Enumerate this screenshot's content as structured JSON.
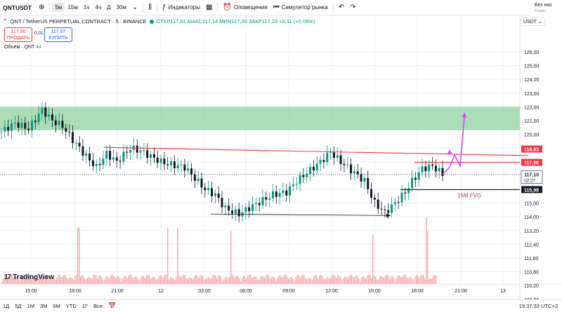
{
  "toolbar": {
    "symbol": "QNTUSDT",
    "intervals": [
      "5м",
      "15м",
      "1ч",
      "4ч",
      "Д",
      "30м"
    ],
    "indicators_label": "Индикаторы",
    "alerts_label": "Оповещения",
    "replay_label": "Симулятор рынка",
    "account_label": "Без наз",
    "account_sub": "Сохра"
  },
  "legend": {
    "title": "QNT / TetherUS PERPETUAL CONTRACT · 5 · BINANCE",
    "ohlc": "ОТКР117,01 МАКС117,14 МИН117,00 ЗАКР117,10 +0,11 (+0,09%)",
    "sell_price": "117,06",
    "sell_label": "ПРОДАТЬ",
    "spread": "0,01",
    "buy_price": "117,07",
    "buy_label": "КУПИТЬ",
    "volume_label": "Объём · QNT",
    "volume_value": "44"
  },
  "currency": "USDT",
  "annotation": "15M FVG",
  "logo_text": "TradingView",
  "bottom": {
    "ranges": [
      "1Д",
      "5Д",
      "1М",
      "3М",
      "6М",
      "YTD",
      "1Г",
      "Все"
    ],
    "clock": "19:37:33 UTC+3"
  },
  "colors": {
    "up": "#089981",
    "down": "#131722",
    "zone": "#8fd19e",
    "red_line": "#f23645",
    "arrow": "#e040fb",
    "volume": "#f7a9a9"
  },
  "chart_data": {
    "type": "candlestick",
    "y_axis_labels": [
      "126,00",
      "125,00",
      "124,00",
      "123,00",
      "122,00",
      "121,00",
      "120,00",
      "119,00",
      "118,00",
      "117,00",
      "116,00",
      "115,00",
      "114,00",
      "113,20",
      "112,40",
      "111,60",
      "110,80",
      "110,20",
      "109,55"
    ],
    "x_axis_labels": [
      "15:00",
      "18:00",
      "21:00",
      "12",
      "03:00",
      "06:00",
      "09:00",
      "12:00",
      "15:00",
      "18:00",
      "21:00",
      "13"
    ],
    "price_labels": [
      {
        "value": "118,93",
        "color": "#f23645"
      },
      {
        "value": "117,96",
        "color": "#f23645"
      },
      {
        "value": "117,10",
        "sub": "02:27",
        "color": "#131722"
      },
      {
        "value": "115,98",
        "color": "#131722"
      }
    ],
    "close_path": [
      [
        0,
        120.2
      ],
      [
        4,
        120.8
      ],
      [
        8,
        120.4
      ],
      [
        12,
        121.8
      ],
      [
        15,
        121.0
      ],
      [
        18,
        120.6
      ],
      [
        21,
        119.6
      ],
      [
        25,
        118.4
      ],
      [
        28,
        117.6
      ],
      [
        31,
        118.6
      ],
      [
        34,
        118.0
      ],
      [
        38,
        119.0
      ],
      [
        41,
        118.8
      ],
      [
        44,
        118.4
      ],
      [
        47,
        118.0
      ],
      [
        50,
        117.8
      ],
      [
        54,
        117.6
      ],
      [
        57,
        116.8
      ],
      [
        60,
        116.0
      ],
      [
        63,
        115.6
      ],
      [
        66,
        114.6
      ],
      [
        70,
        114.2
      ],
      [
        74,
        114.8
      ],
      [
        77,
        115.2
      ],
      [
        80,
        115.6
      ],
      [
        84,
        115.8
      ],
      [
        87,
        116.6
      ],
      [
        90,
        117.2
      ],
      [
        94,
        118.0
      ],
      [
        97,
        118.7
      ],
      [
        100,
        118.0
      ],
      [
        104,
        117.2
      ],
      [
        107,
        116.6
      ],
      [
        110,
        115.0
      ],
      [
        113,
        114.3
      ],
      [
        116,
        115.0
      ],
      [
        119,
        115.8
      ],
      [
        121,
        116.6
      ],
      [
        124,
        117.5
      ],
      [
        127,
        117.7
      ],
      [
        130,
        117.1
      ]
    ],
    "high": 121.8,
    "low": 113.8,
    "last": 117.1
  }
}
